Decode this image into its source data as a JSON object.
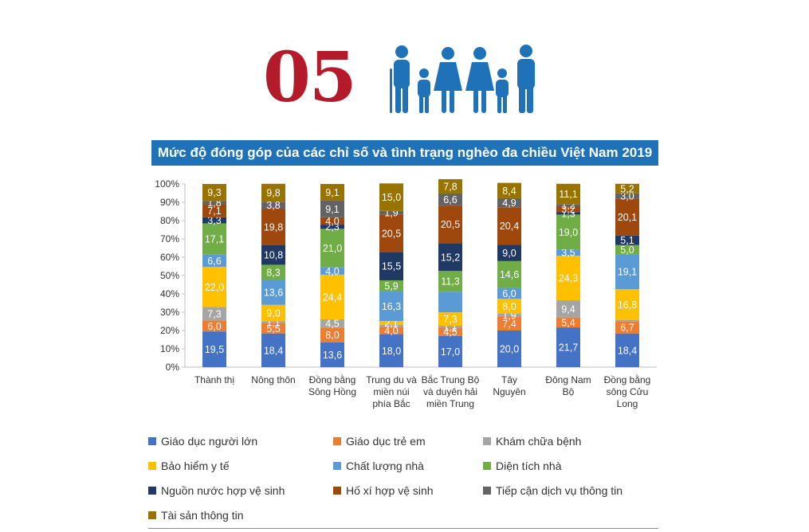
{
  "header": {
    "number": "05",
    "icon": "family-icon"
  },
  "title": "Mức độ đóng góp của các chỉ số và tình trạng nghèo đa chiều Việt Nam 2019",
  "colors": {
    "title_bar": "#1f72b8",
    "number": "#b31b2b",
    "icon": "#1f72b8"
  },
  "chart_data": {
    "type": "bar",
    "stacked": true,
    "ylim": [
      0,
      100
    ],
    "yticks": [
      "0%",
      "10%",
      "20%",
      "30%",
      "40%",
      "50%",
      "60%",
      "70%",
      "80%",
      "90%",
      "100%"
    ],
    "grid": false,
    "legend_position": "bottom",
    "categories": [
      [
        "Thành thị"
      ],
      [
        "Nông thôn"
      ],
      [
        "Đồng bằng",
        "Sông Hồng"
      ],
      [
        "Trung du và",
        "miền núi",
        "phía Bắc"
      ],
      [
        "Bắc Trung Bộ",
        "và duyên hải",
        "miền Trung"
      ],
      [
        "Tây",
        "Nguyên"
      ],
      [
        "Đông Nam",
        "Bộ"
      ],
      [
        "Đồng bằng",
        "sông Cửu",
        "Long"
      ]
    ],
    "series": [
      {
        "name": "Giáo dục người lớn",
        "color": "#4472c4",
        "values": [
          19.5,
          18.4,
          13.6,
          18.0,
          17.0,
          20.0,
          21.7,
          18.4
        ],
        "labels": [
          "19,5",
          "18,4",
          "13,6",
          "18,0",
          "17,0",
          "20,0",
          "21,7",
          "18,4"
        ]
      },
      {
        "name": "Giáo dục trẻ em",
        "color": "#ed7d31",
        "values": [
          6.0,
          5.5,
          8.0,
          4.0,
          4.5,
          7.4,
          5.4,
          6.7
        ],
        "labels": [
          "6,0",
          "5,5",
          "8,0",
          "4,0",
          "4,5",
          "7,4",
          "5,4",
          "6,7"
        ]
      },
      {
        "name": "Khám chữa bệnh",
        "color": "#a5a5a5",
        "values": [
          7.3,
          1.1,
          4.5,
          1.1,
          1.1,
          1.9,
          9.4,
          0.7
        ],
        "labels": [
          "7,3",
          "1,1",
          "4,5",
          "",
          "1,1",
          "1,9",
          "9,4",
          ""
        ]
      },
      {
        "name": "Bảo hiểm y tế",
        "color": "#ffc000",
        "values": [
          22.0,
          9.0,
          24.4,
          2.1,
          7.3,
          8.0,
          24.3,
          16.8
        ],
        "labels": [
          "22,0",
          "9,0",
          "24,4",
          "2,1",
          "7,3",
          "8,0",
          "24,3",
          "16,8"
        ]
      },
      {
        "name": "Chất lượng nhà",
        "color": "#5b9bd5",
        "values": [
          6.6,
          13.6,
          4.0,
          16.3,
          11.3,
          6.0,
          3.5,
          19.1
        ],
        "labels": [
          "6,6",
          "13,6",
          "4,0",
          "16,3",
          "",
          "6,0",
          "3,5",
          "19,1"
        ]
      },
      {
        "name": "Diện tích nhà",
        "color": "#70ad47",
        "values": [
          17.1,
          8.3,
          21.0,
          5.9,
          11.3,
          14.6,
          19.0,
          5.0
        ],
        "labels": [
          "17,1",
          "8,3",
          "21,0",
          "5,9",
          "11,3",
          "14,6",
          "19,0",
          "5,0"
        ]
      },
      {
        "name": "Nguồn nước hợp vệ sinh",
        "color": "#203864",
        "values": [
          3.3,
          10.8,
          2.3,
          15.5,
          15.2,
          9.0,
          1.3,
          5.1
        ],
        "labels": [
          "3,3",
          "10,8",
          "2,3",
          "15,5",
          "15,2",
          "9,0",
          "1,3",
          "5,1"
        ]
      },
      {
        "name": "Hố xí hợp vệ sinh",
        "color": "#9e480e",
        "values": [
          7.1,
          19.8,
          4.0,
          20.5,
          20.5,
          20.4,
          3.2,
          20.1
        ],
        "labels": [
          "7,1",
          "19,8",
          "4,0",
          "20,5",
          "20,5",
          "20,4",
          "3,2",
          "20,1"
        ]
      },
      {
        "name": "Tiếp cận dịch vụ thông tin",
        "color": "#636363",
        "values": [
          1.8,
          3.8,
          9.1,
          1.9,
          6.6,
          4.9,
          1.2,
          3.0
        ],
        "labels": [
          "1,8",
          "3,8",
          "9,1",
          "1,9",
          "6,6",
          "4,9",
          "1,2",
          "3,0"
        ]
      },
      {
        "name": "Tài sản thông tin",
        "color": "#997300",
        "values": [
          9.3,
          9.8,
          9.1,
          15.0,
          7.8,
          8.4,
          11.1,
          5.2
        ],
        "labels": [
          "9,3",
          "9,8",
          "9,1",
          "15,0",
          "7,8",
          "8,4",
          "11,1",
          "5,2"
        ]
      }
    ]
  }
}
